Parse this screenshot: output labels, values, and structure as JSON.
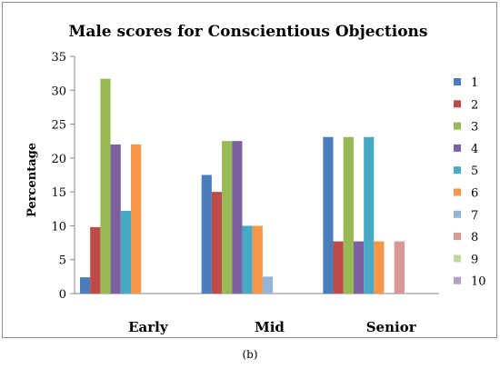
{
  "chart_data": {
    "type": "bar",
    "title": "Male scores for Conscientious Objections",
    "xlabel": "",
    "ylabel": "Percentage",
    "ylim": [
      0,
      35
    ],
    "yticks": [
      0,
      5,
      10,
      15,
      20,
      25,
      30,
      35
    ],
    "categories": [
      "Early",
      "Mid",
      "Senior"
    ],
    "grid": false,
    "legend_position": "right",
    "series": [
      {
        "name": "1",
        "color": "#4a7ebb",
        "values": [
          2.4,
          17.5,
          23.1
        ]
      },
      {
        "name": "2",
        "color": "#be4b48",
        "values": [
          9.8,
          15.0,
          7.7
        ]
      },
      {
        "name": "3",
        "color": "#98b954",
        "values": [
          31.7,
          22.5,
          23.1
        ]
      },
      {
        "name": "4",
        "color": "#7d60a0",
        "values": [
          22.0,
          22.5,
          7.7
        ]
      },
      {
        "name": "5",
        "color": "#46aac5",
        "values": [
          12.2,
          10.0,
          23.1
        ]
      },
      {
        "name": "6",
        "color": "#f79646",
        "values": [
          22.0,
          10.0,
          7.7
        ]
      },
      {
        "name": "7",
        "color": "#95b3d7",
        "values": [
          0,
          2.5,
          0
        ]
      },
      {
        "name": "8",
        "color": "#d99795",
        "values": [
          0,
          0,
          7.7
        ]
      },
      {
        "name": "9",
        "color": "#c3d69b",
        "values": [
          0,
          0,
          0
        ]
      },
      {
        "name": "10",
        "color": "#b3a2c7",
        "values": [
          0,
          0,
          0
        ]
      }
    ]
  },
  "caption": "(b)"
}
